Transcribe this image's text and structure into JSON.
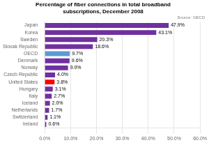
{
  "chart_data": {
    "type": "bar",
    "orientation": "horizontal",
    "title": "Percentage of fiber connections in total broadband\nsubscriptions, December 2008",
    "annotations": [
      "Source: OECD"
    ],
    "categories": [
      "Ireland",
      "Switzerland",
      "Netherlands",
      "Iceland",
      "Italy",
      "Hungary",
      "United States",
      "Czech Republic",
      "Norway",
      "Denmark",
      "OECD",
      "Slovak Republic",
      "Sweden",
      "Korea",
      "Japan"
    ],
    "values": [
      0.6,
      1.1,
      1.7,
      2.0,
      2.7,
      3.1,
      3.8,
      4.0,
      9.0,
      9.6,
      9.7,
      18.6,
      20.3,
      43.1,
      47.9
    ],
    "value_labels": [
      "0.6%",
      "1.1%",
      "1.7%",
      "2.0%",
      "2.7%",
      "3.1%",
      "3.8%",
      "4.0%",
      "9.0%",
      "9.6%",
      "9.7%",
      "18.6%",
      "20.3%",
      "43.1%",
      "47.9%"
    ],
    "data_labels": true,
    "colors": [
      "#7030a0",
      "#7030a0",
      "#7030a0",
      "#7030a0",
      "#7030a0",
      "#7030a0",
      "#ff0000",
      "#7030a0",
      "#7030a0",
      "#7030a0",
      "#5b9bd5",
      "#7030a0",
      "#7030a0",
      "#7030a0",
      "#7030a0"
    ],
    "xlim": [
      0,
      60
    ],
    "xticks": [
      {
        "value": 0,
        "label": "0.0%"
      },
      {
        "value": 10,
        "label": "10.0%"
      },
      {
        "value": 20,
        "label": "20.0%"
      },
      {
        "value": 30,
        "label": "30.0%"
      },
      {
        "value": 40,
        "label": "40.0%"
      },
      {
        "value": 50,
        "label": "50.0%"
      },
      {
        "value": 60,
        "label": "60.0%"
      }
    ],
    "grid": true
  }
}
